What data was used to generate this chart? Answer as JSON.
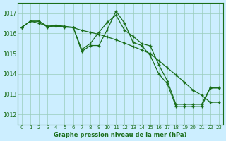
{
  "title": "Graphe pression niveau de la mer (hPa)",
  "background_color": "#cceeff",
  "grid_color": "#99ccbb",
  "line_color": "#1a6e1a",
  "x_labels": [
    "0",
    "1",
    "2",
    "3",
    "4",
    "5",
    "6",
    "7",
    "8",
    "9",
    "10",
    "11",
    "12",
    "13",
    "14",
    "15",
    "16",
    "17",
    "18",
    "19",
    "20",
    "21",
    "22",
    "23"
  ],
  "ylim": [
    1011.5,
    1017.5
  ],
  "yticks": [
    1012,
    1013,
    1014,
    1015,
    1016,
    1017
  ],
  "s1": [
    1016.3,
    1016.6,
    1016.6,
    1016.3,
    1016.4,
    1016.3,
    1016.3,
    1015.1,
    1015.4,
    1015.4,
    1016.2,
    1017.1,
    1016.5,
    1015.55,
    1015.4,
    1014.9,
    1014.0,
    1013.5,
    1012.4,
    1012.4,
    1012.4,
    1012.4,
    1013.3,
    1013.3
  ],
  "s2": [
    1016.3,
    1016.6,
    1016.6,
    1016.35,
    1016.4,
    1016.35,
    1016.3,
    1015.2,
    1015.5,
    1016.05,
    1016.55,
    1016.9,
    1016.15,
    1015.85,
    1015.5,
    1015.38,
    1014.45,
    1013.65,
    1012.5,
    1012.5,
    1012.5,
    1012.5,
    1013.32,
    1013.32
  ],
  "s3": [
    1016.3,
    1016.6,
    1016.5,
    1016.35,
    1016.35,
    1016.32,
    1016.28,
    1016.15,
    1016.05,
    1015.95,
    1015.82,
    1015.68,
    1015.52,
    1015.35,
    1015.18,
    1015.0,
    1014.65,
    1014.3,
    1013.95,
    1013.58,
    1013.2,
    1012.95,
    1012.6,
    1012.6
  ]
}
